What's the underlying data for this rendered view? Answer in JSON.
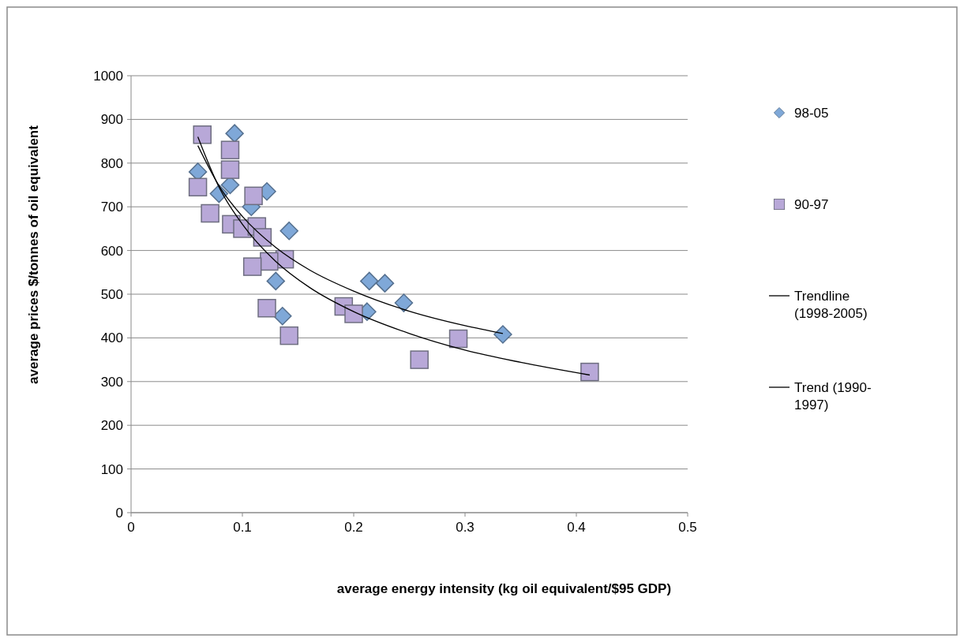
{
  "chart_data": {
    "type": "scatter",
    "xlabel": "average energy intensity (kg oil equivalent/$95 GDP)",
    "ylabel": "average prices $/tonnes of oil equivalent",
    "xlim": [
      0,
      0.5
    ],
    "xticks": [
      0,
      0.1,
      0.2,
      0.3,
      0.4,
      0.5
    ],
    "ylim": [
      0,
      1000
    ],
    "yticks": [
      0,
      100,
      200,
      300,
      400,
      500,
      600,
      700,
      800,
      900,
      1000
    ],
    "grid": "y",
    "legend": "right",
    "series": [
      {
        "name": "98-05",
        "color": "#7fa8d8",
        "marker": "diamond",
        "x": [
          0.093,
          0.06,
          0.089,
          0.079,
          0.122,
          0.108,
          0.142,
          0.13,
          0.136,
          0.214,
          0.228,
          0.245,
          0.212,
          0.334
        ],
        "values": [
          868,
          780,
          750,
          730,
          735,
          700,
          645,
          530,
          450,
          530,
          525,
          480,
          460,
          408
        ]
      },
      {
        "name": "90-97",
        "color": "#b8a8d8",
        "marker": "square",
        "x": [
          0.064,
          0.089,
          0.089,
          0.06,
          0.071,
          0.11,
          0.09,
          0.1,
          0.113,
          0.118,
          0.138,
          0.124,
          0.109,
          0.122,
          0.142,
          0.191,
          0.2,
          0.259,
          0.294,
          0.412
        ],
        "values": [
          865,
          830,
          785,
          745,
          685,
          725,
          660,
          650,
          655,
          630,
          580,
          575,
          563,
          468,
          405,
          472,
          455,
          350,
          398,
          322
        ]
      },
      {
        "name": "Trendline (1998-2005)",
        "type": "line",
        "color": "#000000",
        "marker": "none",
        "x": [
          0.06,
          0.08,
          0.1,
          0.13,
          0.16,
          0.2,
          0.25,
          0.3,
          0.334
        ],
        "values": [
          840,
          744,
          678,
          607,
          556,
          507,
          461,
          428,
          410
        ]
      },
      {
        "name": "Trend (1990-1997)",
        "type": "line",
        "color": "#000000",
        "marker": "none",
        "x": [
          0.06,
          0.08,
          0.1,
          0.13,
          0.16,
          0.2,
          0.25,
          0.3,
          0.35,
          0.412
        ],
        "values": [
          860,
          740,
          660,
          575,
          516,
          460,
          410,
          372,
          344,
          315
        ]
      }
    ]
  }
}
